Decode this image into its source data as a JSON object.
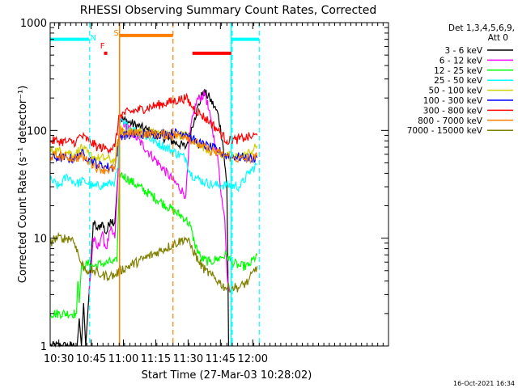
{
  "chart_data": {
    "type": "line",
    "title": "RHESSI Observing Summary Count Rates, Corrected",
    "xlabel": "Start Time (27-Mar-03 10:28:02)",
    "ylabel": "Corrected Count Rate (s⁻¹ detector⁻¹)",
    "y_scale": "log",
    "ylim": [
      1,
      1000
    ],
    "xlim_minutes_after_10_00": [
      26,
      183
    ],
    "x_ticks": [
      {
        "label": "10:30",
        "t": 30
      },
      {
        "label": "10:45",
        "t": 45
      },
      {
        "label": "11:00",
        "t": 60
      },
      {
        "label": "11:15",
        "t": 75
      },
      {
        "label": "11:30",
        "t": 90
      },
      {
        "label": "11:45",
        "t": 105
      },
      {
        "label": "12:00",
        "t": 120
      }
    ],
    "y_ticks": [
      {
        "label": "1",
        "v": 1
      },
      {
        "label": "10",
        "v": 10
      },
      {
        "label": "100",
        "v": 100
      },
      {
        "label": "1000",
        "v": 1000
      }
    ],
    "legend_header": [
      "Det 1,3,4,5,6,9,",
      "Att 0"
    ],
    "legend_position": "right",
    "series": [
      {
        "name": "3 - 6 keV",
        "color": "#000000",
        "points": [
          [
            26,
            1.0
          ],
          [
            38.5,
            1.0
          ],
          [
            39.5,
            1.8
          ],
          [
            40.5,
            1.0
          ],
          [
            41.5,
            2.5
          ],
          [
            42.5,
            1.0
          ],
          [
            44,
            3
          ],
          [
            46,
            14
          ],
          [
            48,
            12
          ],
          [
            50,
            14
          ],
          [
            52,
            11
          ],
          [
            54,
            15
          ],
          [
            56,
            14
          ],
          [
            57.5,
            40
          ],
          [
            58.2,
            130
          ],
          [
            89,
            70
          ],
          [
            93,
            130
          ],
          [
            97,
            230
          ],
          [
            100,
            200
          ],
          [
            104,
            140
          ],
          [
            106,
            80
          ],
          [
            108,
            30
          ],
          [
            108.5,
            5
          ],
          [
            108.8,
            1.0
          ]
        ]
      },
      {
        "name": "6 - 12 keV",
        "color": "#ff00ff",
        "points": [
          [
            44,
            3
          ],
          [
            46,
            10
          ],
          [
            48,
            8
          ],
          [
            50,
            11
          ],
          [
            52,
            8
          ],
          [
            54,
            12
          ],
          [
            56,
            10
          ],
          [
            57.5,
            40
          ],
          [
            58.2,
            130
          ],
          [
            89,
            25
          ],
          [
            91,
            100
          ],
          [
            94,
            190
          ],
          [
            98,
            220
          ],
          [
            101,
            110
          ],
          [
            104,
            50
          ],
          [
            106,
            20
          ],
          [
            107,
            15
          ],
          [
            108,
            5
          ],
          [
            109,
            3.2
          ]
        ]
      },
      {
        "name": "12 - 25 keV",
        "color": "#00ff00",
        "points": [
          [
            26,
            2
          ],
          [
            38.2,
            2
          ],
          [
            38.8,
            4
          ],
          [
            39.5,
            2.5
          ],
          [
            40.5,
            5.5
          ],
          [
            42,
            5.5
          ],
          [
            44,
            5.8
          ],
          [
            46,
            5.5
          ],
          [
            50,
            5.8
          ],
          [
            54,
            6
          ],
          [
            57,
            6
          ],
          [
            58.2,
            40
          ],
          [
            89,
            15
          ],
          [
            91,
            13
          ],
          [
            93,
            9
          ],
          [
            96,
            6.5
          ],
          [
            100,
            6
          ],
          [
            104,
            6.5
          ],
          [
            108,
            7
          ],
          [
            110,
            6
          ],
          [
            114,
            5.5
          ],
          [
            118,
            5.5
          ],
          [
            122,
            7
          ]
        ]
      },
      {
        "name": "25 - 50 keV",
        "color": "#00ffff",
        "points": [
          [
            26,
            35
          ],
          [
            30,
            30
          ],
          [
            34,
            38
          ],
          [
            38,
            32
          ],
          [
            42,
            34
          ],
          [
            46,
            30
          ],
          [
            50,
            31
          ],
          [
            54,
            32
          ],
          [
            56,
            34
          ],
          [
            57.5,
            45
          ],
          [
            58.2,
            120
          ],
          [
            89,
            55
          ],
          [
            91,
            40
          ],
          [
            94,
            36
          ],
          [
            98,
            33
          ],
          [
            102,
            31
          ],
          [
            106,
            31
          ],
          [
            110,
            31
          ],
          [
            114,
            30
          ],
          [
            118,
            40
          ],
          [
            122,
            48
          ]
        ]
      },
      {
        "name": "50 - 100 keV",
        "color": "#d0d000",
        "points": [
          [
            26,
            65
          ],
          [
            30,
            65
          ],
          [
            34,
            63
          ],
          [
            38,
            60
          ],
          [
            40,
            70
          ],
          [
            44,
            60
          ],
          [
            48,
            55
          ],
          [
            52,
            55
          ],
          [
            56,
            52
          ],
          [
            58.2,
            100
          ],
          [
            89,
            90
          ],
          [
            92,
            80
          ],
          [
            96,
            72
          ],
          [
            100,
            66
          ],
          [
            104,
            62
          ],
          [
            108,
            58
          ],
          [
            112,
            57
          ],
          [
            116,
            58
          ],
          [
            120,
            65
          ],
          [
            122,
            72
          ]
        ]
      },
      {
        "name": "100 - 300 keV",
        "color": "#0000ff",
        "points": [
          [
            26,
            56
          ],
          [
            30,
            56
          ],
          [
            34,
            55
          ],
          [
            38,
            55
          ],
          [
            40,
            62
          ],
          [
            44,
            55
          ],
          [
            48,
            48
          ],
          [
            52,
            46
          ],
          [
            56,
            45
          ],
          [
            58.2,
            90
          ],
          [
            89,
            95
          ],
          [
            92,
            82
          ],
          [
            96,
            75
          ],
          [
            100,
            70
          ],
          [
            104,
            65
          ],
          [
            108,
            58
          ],
          [
            112,
            57
          ],
          [
            116,
            56
          ],
          [
            120,
            55
          ],
          [
            122,
            56
          ]
        ]
      },
      {
        "name": "300 - 800 keV",
        "color": "#ff0000",
        "points": [
          [
            26,
            80
          ],
          [
            30,
            80
          ],
          [
            34,
            78
          ],
          [
            38,
            78
          ],
          [
            40,
            90
          ],
          [
            44,
            80
          ],
          [
            48,
            70
          ],
          [
            52,
            68
          ],
          [
            56,
            70
          ],
          [
            58.2,
            140
          ],
          [
            89,
            200
          ],
          [
            92,
            165
          ],
          [
            96,
            140
          ],
          [
            100,
            120
          ],
          [
            104,
            100
          ],
          [
            108,
            80
          ],
          [
            112,
            82
          ],
          [
            116,
            85
          ],
          [
            120,
            88
          ],
          [
            122,
            90
          ]
        ]
      },
      {
        "name": "800 - 7000 keV",
        "color": "#ff8000",
        "points": [
          [
            26,
            58
          ],
          [
            30,
            58
          ],
          [
            34,
            56
          ],
          [
            38,
            55
          ],
          [
            40,
            58
          ],
          [
            44,
            52
          ],
          [
            48,
            45
          ],
          [
            52,
            43
          ],
          [
            56,
            44
          ],
          [
            58.2,
            95
          ],
          [
            89,
            90
          ],
          [
            92,
            80
          ],
          [
            96,
            72
          ],
          [
            100,
            65
          ],
          [
            104,
            62
          ],
          [
            108,
            58
          ],
          [
            112,
            55
          ],
          [
            116,
            54
          ],
          [
            120,
            55
          ],
          [
            122,
            57
          ]
        ]
      },
      {
        "name": "7000 - 15000 keV",
        "color": "#808000",
        "points": [
          [
            26,
            9
          ],
          [
            28,
            10
          ],
          [
            32,
            10
          ],
          [
            36,
            10
          ],
          [
            38,
            8.5
          ],
          [
            40,
            6
          ],
          [
            43,
            5
          ],
          [
            46,
            5
          ],
          [
            50,
            4.5
          ],
          [
            54,
            4.5
          ],
          [
            56,
            4.5
          ],
          [
            58.2,
            5
          ],
          [
            89,
            10
          ],
          [
            92,
            8
          ],
          [
            95,
            6
          ],
          [
            98,
            5
          ],
          [
            101,
            4.5
          ],
          [
            104,
            4
          ],
          [
            107,
            3.5
          ],
          [
            110,
            3.5
          ],
          [
            114,
            3.5
          ],
          [
            118,
            4
          ],
          [
            122,
            5.5
          ]
        ]
      }
    ],
    "state_bars": [
      {
        "label": "N",
        "color": "#00ffff",
        "segments": [
          [
            26,
            44
          ]
        ],
        "value": 700
      },
      {
        "label": "N",
        "color": "#00ffff",
        "segments": [
          [
            110,
            123
          ]
        ],
        "value": 700
      },
      {
        "label": "S",
        "color": "#ff8000",
        "segments": [
          [
            58.2,
            83
          ]
        ],
        "value": 760
      },
      {
        "label": "F",
        "color": "#ff0000",
        "segments": [
          [
            92,
            110
          ]
        ],
        "value": 520
      },
      {
        "label": "F",
        "color": "#ff0000",
        "segments": [
          [
            51,
            52.5
          ]
        ],
        "value": 520
      }
    ],
    "bar_labels": [
      {
        "text": "N",
        "color": "#00ffff"
      },
      {
        "text": "F",
        "color": "#ff0000"
      },
      {
        "text": "S",
        "color": "#ff8000"
      }
    ],
    "vertical_markers": [
      {
        "t": 44.3,
        "color": "#00ffff",
        "style": "dashed"
      },
      {
        "t": 58.2,
        "color": "#ff8000",
        "style": "solid"
      },
      {
        "t": 83,
        "color": "#ff8000",
        "style": "dashed"
      },
      {
        "t": 110,
        "color": "#00ffff",
        "style": "solid"
      },
      {
        "t": 110.5,
        "color": "#00ffff",
        "style": "dashed"
      },
      {
        "t": 123,
        "color": "#00ffff",
        "style": "dashed"
      }
    ],
    "footer_timestamp": "16-Oct-2021 16:34",
    "grid": false
  }
}
